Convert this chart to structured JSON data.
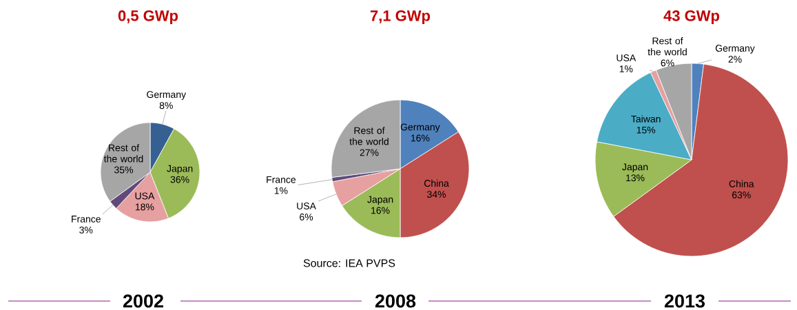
{
  "chart_data": [
    {
      "type": "pie",
      "title": "0,5 GWp",
      "subtitle": "2002",
      "categories": [
        "Germany",
        "Japan",
        "USA",
        "France",
        "Rest of the world"
      ],
      "values": [
        8,
        36,
        18,
        3,
        35
      ],
      "value_labels": [
        "8%",
        "36%",
        "18%",
        "3%",
        "35%"
      ],
      "colors": [
        "#376092",
        "#9bbb59",
        "#e6a0a0",
        "#604a7b",
        "#a6a6a6"
      ]
    },
    {
      "type": "pie",
      "title": "7,1 GWp",
      "subtitle": "2008",
      "categories": [
        "Germany",
        "China",
        "Japan",
        "USA",
        "France",
        "Rest of the world"
      ],
      "values": [
        16,
        34,
        16,
        6,
        1,
        27
      ],
      "value_labels": [
        "16%",
        "34%",
        "16%",
        "6%",
        "1%",
        "27%"
      ],
      "colors": [
        "#4f81bd",
        "#c0504d",
        "#9bbb59",
        "#e6a0a0",
        "#604a7b",
        "#a6a6a6"
      ],
      "annotations": [
        "Source: IEA PVPS"
      ]
    },
    {
      "type": "pie",
      "title": "43 GWp",
      "subtitle": "2013",
      "categories": [
        "Germany",
        "China",
        "Japan",
        "Taiwan",
        "USA",
        "Rest of the world"
      ],
      "values": [
        2,
        63,
        13,
        15,
        1,
        6
      ],
      "value_labels": [
        "2%",
        "63%",
        "13%",
        "15%",
        "1%",
        "6%"
      ],
      "colors": [
        "#4f81bd",
        "#c0504d",
        "#9bbb59",
        "#4bacc6",
        "#e6a0a0",
        "#a6a6a6"
      ]
    }
  ]
}
